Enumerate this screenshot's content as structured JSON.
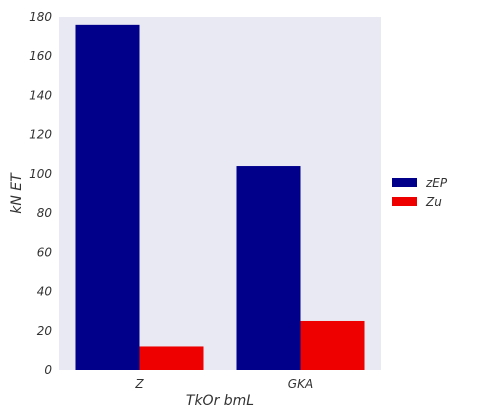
{
  "chart_data": {
    "type": "bar",
    "categories": [
      "Z",
      "GKA"
    ],
    "series": [
      {
        "name": "zEP",
        "values": [
          176,
          104
        ],
        "color": "#00008b"
      },
      {
        "name": "Zu",
        "values": [
          12,
          25
        ],
        "color": "#ee0000"
      }
    ],
    "title": "",
    "xlabel": "TkOr bmL",
    "ylabel": "kN ET",
    "ylim": [
      0,
      180
    ],
    "yticks": [
      0,
      20,
      40,
      60,
      80,
      100,
      120,
      140,
      160,
      180
    ],
    "grid": false,
    "legend_position": "right",
    "background_color": "#e8e9f2"
  }
}
